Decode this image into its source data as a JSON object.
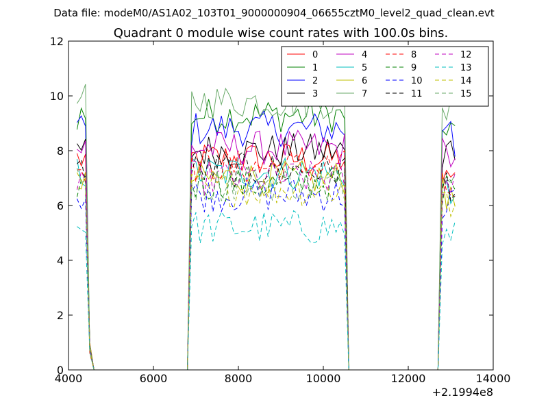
{
  "chart_data": {
    "type": "line",
    "suptitle": "Data file: modeM0/AS1A02_103T01_9000000904_06655cztM0_level2_quad_clean.evt",
    "title": "Quadrant 0 module wise count rates with 100.0s bins.",
    "xlabel": "",
    "ylabel": "",
    "x_offset_label": "+2.1994e8",
    "xlim": [
      4000,
      14000
    ],
    "ylim": [
      0,
      12
    ],
    "xticks": [
      4000,
      6000,
      8000,
      10000,
      12000,
      14000
    ],
    "yticks": [
      0,
      2,
      4,
      6,
      8,
      10,
      12
    ],
    "xtick_labels": [
      "4000",
      "6000",
      "8000",
      "10000",
      "12000",
      "14000"
    ],
    "ytick_labels": [
      "0",
      "2",
      "4",
      "6",
      "8",
      "10",
      "12"
    ],
    "grid": false,
    "legend_position": "top-right",
    "legend_columns": 4,
    "segments": [
      {
        "start": 4200,
        "end": 4600,
        "drop_start": 4500
      },
      {
        "start": 6800,
        "end": 10600,
        "drop_start": 10500
      },
      {
        "start": 12700,
        "end": 13100,
        "drop_start": 13100
      }
    ],
    "series": [
      {
        "name": "0",
        "color": "#ff0000",
        "dashed": false,
        "level": 7.7
      },
      {
        "name": "1",
        "color": "#008000",
        "dashed": false,
        "level": 9.3
      },
      {
        "name": "2",
        "color": "#0000ff",
        "dashed": false,
        "level": 8.8
      },
      {
        "name": "3",
        "color": "#000000",
        "dashed": false,
        "level": 8.0
      },
      {
        "name": "4",
        "color": "#bf00bf",
        "dashed": false,
        "level": 8.1
      },
      {
        "name": "5",
        "color": "#00bfbf",
        "dashed": false,
        "level": 7.2
      },
      {
        "name": "6",
        "color": "#bfbf00",
        "dashed": false,
        "level": 7.0
      },
      {
        "name": "7",
        "color": "#6aaa6a",
        "dashed": false,
        "level": 9.8
      },
      {
        "name": "8",
        "color": "#ff0000",
        "dashed": true,
        "level": 7.4
      },
      {
        "name": "9",
        "color": "#008000",
        "dashed": true,
        "level": 6.8
      },
      {
        "name": "10",
        "color": "#0000ff",
        "dashed": true,
        "level": 6.4
      },
      {
        "name": "11",
        "color": "#000000",
        "dashed": true,
        "level": 7.3
      },
      {
        "name": "12",
        "color": "#bf00bf",
        "dashed": true,
        "level": 7.0
      },
      {
        "name": "13",
        "color": "#00bfbf",
        "dashed": true,
        "level": 5.2
      },
      {
        "name": "14",
        "color": "#bfbf00",
        "dashed": true,
        "level": 6.6
      },
      {
        "name": "15",
        "color": "#6aaa6a",
        "dashed": true,
        "level": 6.8
      }
    ]
  }
}
